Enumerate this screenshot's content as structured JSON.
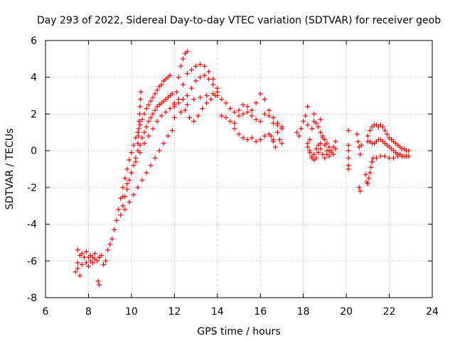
{
  "chart_data": {
    "type": "scatter",
    "title": "Day 293 of 2022, Sidereal Day-to-day VTEC variation (SDTVAR) for receiver geob",
    "xlabel": "GPS time / hours",
    "ylabel": "SDTVAR / TECUs",
    "xlim": [
      6,
      24
    ],
    "ylim": [
      -8,
      6
    ],
    "xticks": [
      "6",
      "8",
      "10",
      "12",
      "14",
      "16",
      "18",
      "20",
      "22",
      "24"
    ],
    "yticks": [
      "-8",
      "-6",
      "-4",
      "-2",
      "0",
      "2",
      "4",
      "6"
    ],
    "grid": true,
    "marker": "+",
    "colors": {
      "series": "#ff0000",
      "grid": "#a0a0a0",
      "axis": "#000000"
    },
    "series": [
      {
        "name": "SDTVAR",
        "x": [
          7.4,
          7.5,
          7.6,
          7.7,
          7.8,
          7.9,
          8.0,
          8.1,
          8.2,
          8.3,
          8.4,
          8.5,
          8.6,
          7.5,
          7.7,
          7.9,
          8.1,
          8.3,
          8.5,
          7.5,
          7.6,
          8.0,
          8.2,
          8.45,
          8.5,
          8.7,
          8.8,
          8.9,
          9.0,
          9.1,
          9.2,
          9.3,
          9.4,
          9.5,
          9.6,
          9.7,
          9.8,
          9.9,
          10.0,
          10.1,
          10.2,
          10.3,
          10.4,
          10.5,
          10.6,
          10.7,
          10.8,
          10.9,
          11.0,
          11.1,
          11.2,
          11.3,
          11.4,
          11.5,
          11.6,
          11.7,
          11.8,
          9.5,
          9.6,
          9.7,
          9.8,
          9.9,
          10.0,
          10.1,
          10.2,
          10.3,
          10.4,
          10.5,
          10.6,
          10.7,
          10.8,
          10.9,
          11.0,
          11.1,
          11.2,
          11.3,
          11.4,
          11.5,
          11.6,
          11.7,
          11.8,
          11.9,
          9.6,
          9.8,
          10.0,
          10.2,
          10.4,
          10.6,
          10.8,
          11.0,
          11.2,
          11.4,
          11.6,
          11.8,
          12.0,
          9.7,
          9.9,
          10.1,
          10.3,
          10.5,
          10.7,
          10.9,
          11.1,
          11.3,
          11.5,
          11.7,
          11.9,
          10.3,
          10.32,
          10.34,
          10.36,
          10.38,
          10.4,
          10.42,
          10.44,
          12.0,
          12.1,
          12.2,
          12.3,
          12.4,
          12.5,
          12.6,
          12.2,
          12.4,
          12.6,
          12.8,
          13.0,
          13.2,
          13.4,
          13.6,
          13.8,
          14.0,
          12.0,
          12.2,
          12.4,
          12.6,
          12.8,
          13.0,
          13.2,
          13.4,
          13.6,
          13.8,
          14.0,
          12.0,
          12.3,
          12.6,
          12.9,
          13.2,
          13.5,
          13.8,
          12.5,
          12.7,
          12.9,
          13.1,
          13.3,
          13.5,
          13.7,
          13.9,
          14.0,
          14.2,
          14.4,
          14.6,
          14.8,
          15.0,
          15.2,
          15.4,
          15.6,
          15.8,
          16.0,
          16.2,
          16.4,
          16.6,
          16.8,
          17.0,
          14.2,
          14.4,
          14.6,
          14.8,
          15.0,
          15.2,
          15.4,
          15.6,
          15.8,
          16.0,
          16.2,
          16.4,
          16.6,
          16.8,
          17.0,
          14.8,
          15.0,
          15.2,
          15.4,
          15.6,
          15.8,
          16.0,
          16.2,
          16.4,
          16.6,
          16.5,
          16.6,
          16.7,
          16.8,
          16.9,
          17.0,
          17.7,
          17.8,
          17.9,
          18.0,
          18.1,
          18.2,
          18.3,
          18.4,
          18.5,
          18.6,
          18.7,
          18.8,
          18.9,
          19.0,
          19.1,
          19.2,
          19.3,
          19.4,
          19.5,
          18.2,
          18.3,
          18.4,
          18.5,
          18.6,
          18.7,
          18.8,
          18.9,
          19.0,
          19.1,
          19.2,
          19.3,
          19.4,
          19.5,
          18.4,
          18.5,
          18.6,
          18.7,
          18.8,
          18.9,
          19.0,
          19.1,
          19.2,
          18.2,
          18.5,
          18.8,
          18.2,
          18.3,
          20.1,
          20.1,
          20.1,
          20.1,
          20.1,
          20.1,
          20.5,
          20.55,
          20.6,
          20.65,
          20.7,
          20.6,
          20.65,
          21.0,
          21.1,
          21.2,
          21.3,
          21.4,
          21.5,
          21.6,
          21.7,
          21.8,
          21.9,
          22.0,
          22.1,
          22.2,
          22.3,
          22.4,
          22.5,
          22.6,
          22.7,
          22.8,
          22.9,
          21.0,
          21.1,
          21.2,
          21.3,
          21.4,
          21.5,
          21.6,
          21.7,
          21.8,
          21.9,
          22.0,
          22.1,
          22.2,
          22.3,
          22.4,
          22.5,
          22.6,
          22.7,
          22.8,
          22.9,
          21.2,
          21.4,
          21.6,
          21.8,
          22.0,
          22.2,
          22.4,
          22.6,
          22.8,
          21.0,
          21.05,
          21.1,
          21.15,
          21.2,
          21.25,
          20.9,
          20.95
        ],
        "y": [
          -6.6,
          -6.1,
          -5.7,
          -6.2,
          -5.8,
          -6.1,
          -5.8,
          -6.0,
          -5.8,
          -5.9,
          -6.0,
          -5.8,
          -5.7,
          -5.4,
          -5.6,
          -5.5,
          -5.7,
          -5.6,
          -5.8,
          -6.4,
          -6.8,
          -6.3,
          -6.1,
          -7.1,
          -7.3,
          -6.2,
          -6.0,
          -5.4,
          -5.1,
          -4.8,
          -4.3,
          -3.8,
          -3.2,
          -2.6,
          -2.0,
          -1.5,
          -1.0,
          -0.5,
          -0.1,
          0.3,
          0.7,
          1.0,
          1.4,
          1.7,
          2.0,
          2.3,
          2.5,
          2.7,
          2.9,
          3.1,
          3.3,
          3.5,
          3.6,
          3.8,
          3.9,
          4.0,
          4.1,
          -3.5,
          -3.0,
          -2.5,
          -2.1,
          -1.6,
          -1.2,
          -0.8,
          -0.4,
          0.0,
          0.3,
          0.7,
          1.0,
          1.3,
          1.6,
          1.8,
          2.0,
          2.2,
          2.4,
          2.5,
          2.6,
          2.7,
          2.8,
          2.9,
          3.0,
          3.1,
          -2.5,
          -1.8,
          -1.2,
          -0.6,
          -0.1,
          0.4,
          0.8,
          1.2,
          1.6,
          1.9,
          2.1,
          2.3,
          2.5,
          -3.2,
          -2.8,
          -2.4,
          -2.0,
          -1.6,
          -1.2,
          -0.8,
          -0.4,
          0.0,
          0.4,
          0.8,
          1.1,
          0.4,
          0.8,
          1.2,
          1.6,
          2.0,
          2.4,
          2.8,
          3.2,
          2.6,
          3.2,
          4.0,
          4.6,
          5.0,
          5.3,
          5.4,
          2.8,
          3.6,
          4.2,
          4.4,
          4.6,
          4.7,
          4.6,
          4.3,
          3.9,
          3.4,
          2.4,
          2.6,
          2.8,
          3.0,
          3.4,
          3.8,
          4.0,
          4.1,
          3.9,
          3.6,
          3.2,
          1.8,
          2.1,
          2.5,
          2.8,
          2.9,
          3.0,
          3.1,
          2.2,
          1.8,
          1.6,
          1.9,
          2.3,
          2.6,
          2.8,
          3.0,
          3.0,
          2.8,
          2.6,
          2.3,
          2.1,
          2.2,
          2.5,
          2.4,
          2.2,
          2.6,
          3.1,
          2.8,
          2.2,
          1.8,
          1.5,
          1.2,
          1.9,
          1.8,
          1.6,
          1.5,
          1.9,
          2.0,
          2.1,
          1.9,
          1.7,
          1.6,
          2.0,
          1.9,
          1.5,
          1.4,
          1.3,
          1.2,
          0.9,
          0.7,
          0.6,
          0.7,
          0.5,
          0.6,
          0.8,
          0.9,
          0.6,
          0.8,
          0.5,
          0.2,
          1.0,
          0.6,
          0.4,
          1.0,
          0.8,
          1.2,
          1.6,
          1.9,
          1.4,
          0.6,
          1.2,
          1.6,
          1.5,
          1.3,
          1.0,
          0.8,
          0.6,
          0.4,
          0.2,
          0.0,
          -0.2,
          0.1,
          0.2,
          0.0,
          -0.3,
          -0.5,
          -0.4,
          -0.1,
          0.4,
          0.7,
          0.3,
          0.0,
          -0.3,
          -0.1,
          0.2,
          0.5,
          -0.4,
          -0.2,
          0.1,
          0.3,
          0.1,
          -0.2,
          -0.4,
          -0.2,
          0.0,
          2.4,
          2.0,
          1.7,
          0.4,
          -0.1,
          1.1,
          0.3,
          0.0,
          -0.4,
          -0.8,
          -1.0,
          0.9,
          0.5,
          0.2,
          -0.2,
          0.3,
          -2.0,
          -2.2,
          0.8,
          1.1,
          1.3,
          1.4,
          1.4,
          1.3,
          1.4,
          1.3,
          1.1,
          0.9,
          0.7,
          0.6,
          0.5,
          0.4,
          0.3,
          0.2,
          0.1,
          0.1,
          0.0,
          0.0,
          0.5,
          0.5,
          0.4,
          0.4,
          0.5,
          0.6,
          0.6,
          0.5,
          0.4,
          0.3,
          0.2,
          0.1,
          0.0,
          -0.1,
          -0.2,
          -0.2,
          -0.3,
          -0.3,
          -0.3,
          -0.3,
          -0.6,
          -0.4,
          -0.3,
          -0.3,
          -0.4,
          -0.4,
          -0.3,
          -0.3,
          -0.3,
          -1.8,
          -1.5,
          -1.2,
          -0.9,
          -0.6,
          -0.4,
          -1.3,
          -1.7
        ]
      }
    ]
  }
}
